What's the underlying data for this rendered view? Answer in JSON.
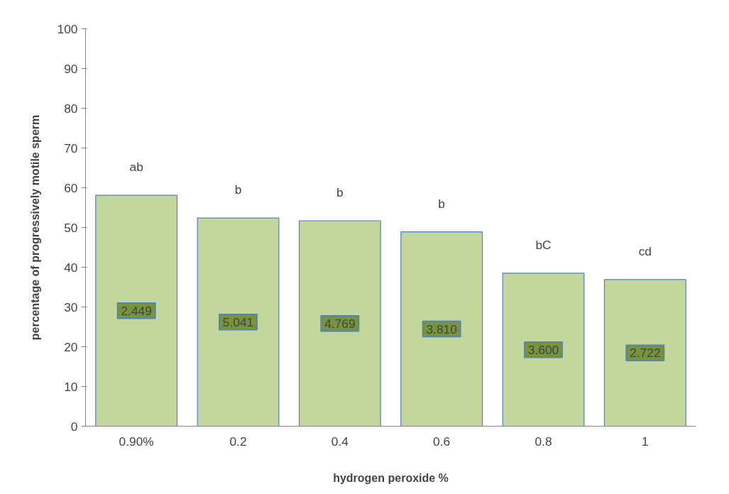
{
  "chart_data": {
    "type": "bar",
    "xlabel": "hydrogen peroxide %",
    "ylabel": "percentage of progressively motile sperm",
    "categories": [
      "0.90%",
      "0.2",
      "0.4",
      "0.6",
      "0.8",
      "1"
    ],
    "values": [
      58.1,
      52.4,
      51.7,
      48.9,
      38.5,
      36.9
    ],
    "color": "#c3d69b",
    "ylim": [
      0,
      100
    ],
    "yticks": [
      0,
      10,
      20,
      30,
      40,
      50,
      60,
      70,
      80,
      90,
      100
    ],
    "grid": false,
    "annotations": [
      "2.449",
      "5.041",
      "4.769",
      "3.810",
      "3.600",
      "2.722",
      "ab",
      "b",
      "b",
      "b",
      "bC",
      "cd"
    ]
  }
}
